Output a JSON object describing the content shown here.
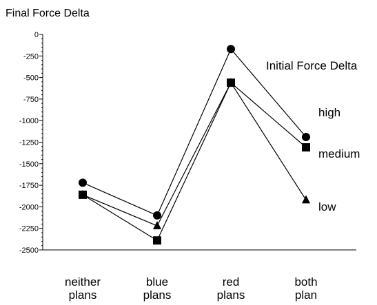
{
  "chart_data": {
    "type": "line",
    "title": "Final Force Delta",
    "legend_title": "Initial Force Delta",
    "categories": [
      [
        "neither",
        "plans"
      ],
      [
        "blue",
        "plans"
      ],
      [
        "red",
        "plans"
      ],
      [
        "both",
        "plan"
      ]
    ],
    "ylim": [
      -2500,
      0
    ],
    "yticks": [
      0,
      -250,
      -500,
      -750,
      -1000,
      -1250,
      -1500,
      -1750,
      -2000,
      -2250,
      -2500
    ],
    "grid": false,
    "series": [
      {
        "name": "high",
        "marker": "circle",
        "values": [
          -1720,
          -2100,
          -170,
          -1190
        ]
      },
      {
        "name": "medium",
        "marker": "square",
        "values": [
          -1860,
          -2390,
          -560,
          -1310
        ]
      },
      {
        "name": "low",
        "marker": "triangle",
        "values": [
          -1860,
          -2220,
          -560,
          -1920
        ]
      }
    ]
  }
}
